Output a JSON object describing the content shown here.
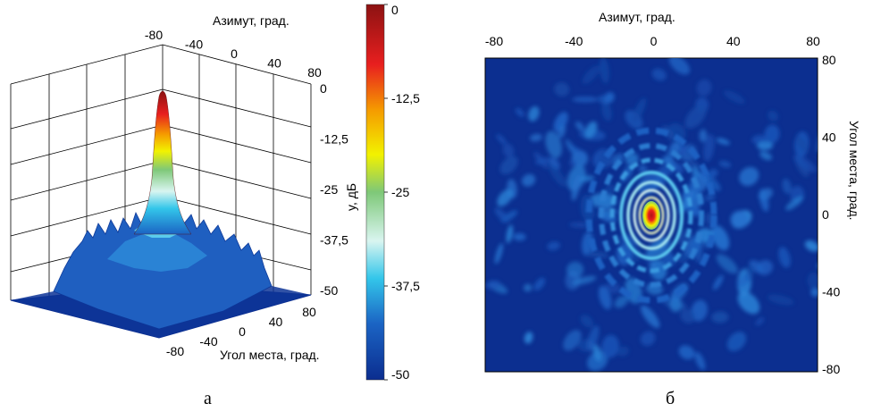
{
  "chart_data": [
    {
      "type": "surface",
      "caption": "а",
      "colormap": [
        "#0b2d8f",
        "#1b64c4",
        "#33c6ea",
        "#d9f5f0",
        "#7ec878",
        "#f2f200",
        "#f59a00",
        "#e81f1f",
        "#8c1212"
      ],
      "x_axis": {
        "label": "Азимут, град.",
        "ticks": [
          "-80",
          "-40",
          "0",
          "40",
          "80"
        ],
        "range": [
          -80,
          80
        ]
      },
      "y_axis": {
        "label": "Угол места, град.",
        "ticks": [
          "-80",
          "-40",
          "0",
          "40",
          "80"
        ],
        "range": [
          -80,
          80
        ]
      },
      "z_axis": {
        "label": "y, дБ",
        "ticks": [
          "0",
          "-12,5",
          "-25",
          "-37,5",
          "-50"
        ],
        "range": [
          -50,
          0
        ]
      },
      "peak": {
        "azimuth": 0,
        "elevation": 0,
        "value": 0
      }
    },
    {
      "type": "colorbar",
      "ticks": [
        "0",
        "-12,5",
        "-25",
        "-37,5",
        "-50"
      ],
      "range": [
        -50,
        0
      ]
    },
    {
      "type": "heatmap",
      "caption": "б",
      "x_axis": {
        "label": "Азимут, град.",
        "ticks": [
          "-80",
          "-40",
          "0",
          "40",
          "80"
        ],
        "range": [
          -80,
          80
        ]
      },
      "y_axis": {
        "label": "Угол места, град.",
        "ticks": [
          "80",
          "40",
          "0",
          "-40",
          "-80"
        ],
        "range": [
          -80,
          80
        ]
      },
      "peak": {
        "azimuth": 0,
        "elevation": 0,
        "value": 0
      },
      "background_value": -50
    }
  ]
}
